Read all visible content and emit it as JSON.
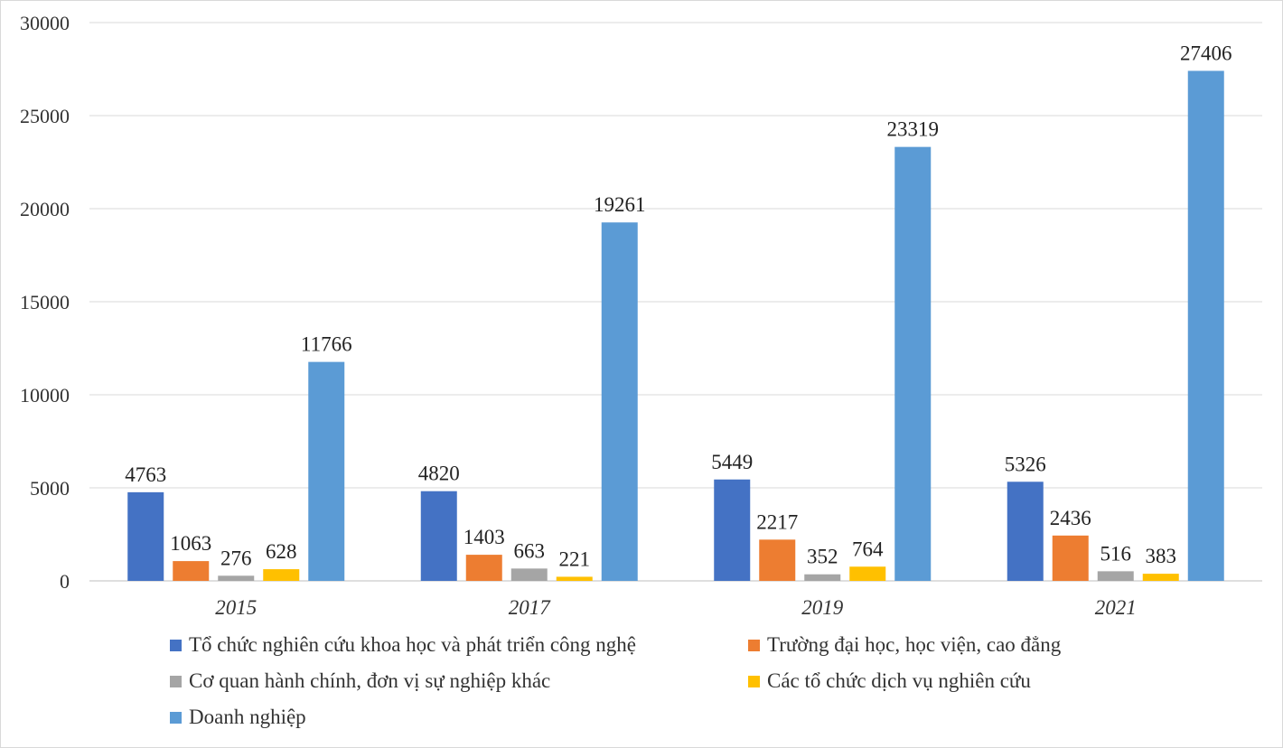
{
  "chart_data": {
    "type": "bar",
    "categories": [
      "2015",
      "2017",
      "2019",
      "2021"
    ],
    "ylim": [
      0,
      30000
    ],
    "yticks": [
      "0",
      "5000",
      "10000",
      "15000",
      "20000",
      "25000",
      "30000"
    ],
    "grid": true,
    "legend_position": "bottom",
    "series": [
      {
        "name": "Tổ chức nghiên cứu khoa học và phát triển công nghệ",
        "color": "#4472C4",
        "values": [
          4763,
          4820,
          5449,
          5326
        ]
      },
      {
        "name": "Trường đại học, học viện, cao đẳng",
        "color": "#ED7D31",
        "values": [
          1063,
          1403,
          2217,
          2436
        ]
      },
      {
        "name": "Cơ quan hành chính, đơn vị sự nghiệp khác",
        "color": "#A5A5A5",
        "values": [
          276,
          663,
          352,
          516
        ]
      },
      {
        "name": "Các tổ chức dịch vụ nghiên cứu",
        "color": "#FFC000",
        "values": [
          628,
          221,
          764,
          383
        ]
      },
      {
        "name": "Doanh nghiệp",
        "color": "#5B9BD5",
        "values": [
          11766,
          19261,
          23319,
          27406
        ]
      }
    ]
  }
}
